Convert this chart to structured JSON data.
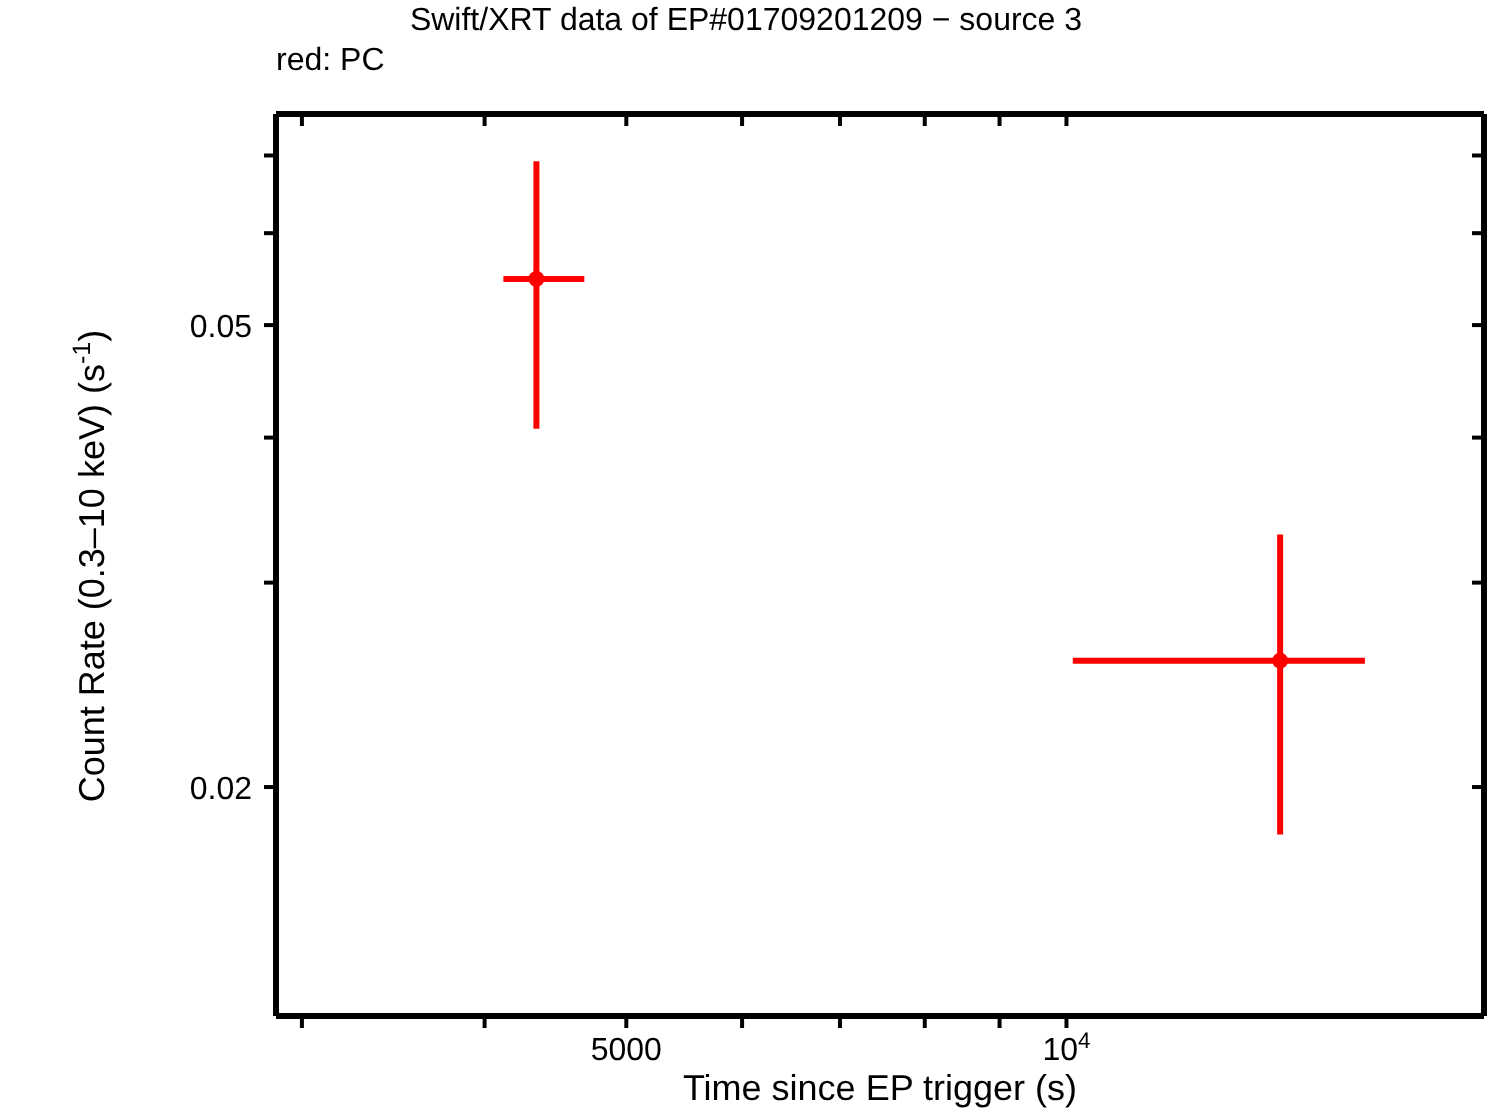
{
  "chart_data": {
    "type": "scatter",
    "title": "Swift/XRT data of EP#01709201209 − source 3",
    "subtitle": "red: PC",
    "xlabel": "Time since EP trigger (s)",
    "ylabel": "Count Rate (0.3–10 keV) (s$^{-1}$)",
    "log": "xy",
    "marker": "circle",
    "xlim": [
      2880,
      19300
    ],
    "ylim": [
      0.0127,
      0.076
    ],
    "xticks": [
      {
        "value": 3000,
        "label": null
      },
      {
        "value": 4000,
        "label": null
      },
      5000,
      {
        "value": 6000,
        "label": null
      },
      {
        "value": 7000,
        "label": null
      },
      {
        "value": 8000,
        "label": null
      },
      {
        "value": 9000,
        "label": null
      },
      {
        "value": 10000,
        "label": "10$^{4}$"
      }
    ],
    "yticks": [
      0.02,
      {
        "value": 0.03,
        "label": null
      },
      {
        "value": 0.04,
        "label": null
      },
      0.05,
      {
        "value": 0.06,
        "label": null
      },
      {
        "value": 0.07,
        "label": null
      }
    ],
    "series": [
      {
        "color": "#ff0000",
        "x": [
          4340,
          14000
        ],
        "values": [
          0.0548,
          0.0257
        ],
        "errors": [
          [
            0.0407,
            0.0692
          ],
          [
            0.0182,
            0.033
          ]
        ],
        "xerrors": [
          [
            4120,
            4680
          ],
          [
            10100,
            16000
          ]
        ]
      }
    ]
  }
}
